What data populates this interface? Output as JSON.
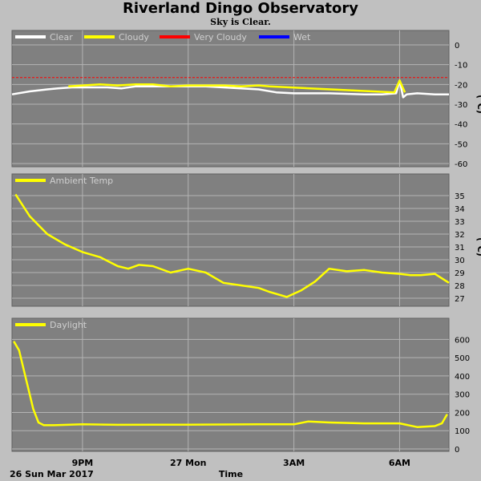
{
  "header": {
    "title": "Riverland Dingo Observatory",
    "subtitle": "Sky is Clear."
  },
  "footer": {
    "date": "26 Sun Mar 2017",
    "xlabel": "Time"
  },
  "colors": {
    "panel": "#808080",
    "grid": "#b4b4b4",
    "clear": "#ffffff",
    "cloudy": "#ffff00",
    "very_cloudy": "#ff0000",
    "wet": "#0000ff"
  },
  "chart_data": [
    {
      "type": "line",
      "panel": "sky",
      "unit": "(°C)",
      "ylim": [
        -60,
        0
      ],
      "yticks": [
        0,
        -10,
        -20,
        -30,
        -40,
        -50,
        -60
      ],
      "xticks": [
        "9PM",
        "27 Mon",
        "3AM",
        "6AM"
      ],
      "xlim_hours": [
        19,
        31.4
      ],
      "threshold": -16.5,
      "legend": [
        "Clear",
        "Cloudy",
        "Very Cloudy",
        "Wet"
      ],
      "series": [
        {
          "name": "Clear",
          "x": [
            19,
            19.5,
            20,
            20.3,
            20.7,
            21.7,
            22.1,
            22.5,
            24.5,
            25,
            25.5,
            26,
            26.5,
            27,
            28,
            29,
            29.5,
            29.9,
            30,
            30.1,
            30.2,
            30.5,
            31,
            31.4
          ],
          "values": [
            -25,
            -23.5,
            -22.5,
            -22,
            -21.5,
            -21.5,
            -22,
            -21,
            -21,
            -21.5,
            -22,
            -22.5,
            -24,
            -24.5,
            -24.5,
            -25,
            -25,
            -24.5,
            -18,
            -26.5,
            -25,
            -24.5,
            -25,
            -25
          ]
        },
        {
          "name": "Cloudy",
          "x": [
            20.6,
            21,
            21.5,
            22,
            22.5,
            23,
            23.5,
            24,
            24.5,
            25,
            25.5,
            26,
            26.3,
            29.85,
            30,
            30.15
          ],
          "values": [
            -21,
            -20.5,
            -20,
            -20.5,
            -20,
            -20,
            -21,
            -20.5,
            -20.5,
            -20.5,
            -21,
            -20.5,
            -21,
            -24,
            -18,
            -24
          ]
        }
      ]
    },
    {
      "type": "line",
      "panel": "ambient",
      "unit": "(°C)",
      "ylim": [
        26.5,
        35.5
      ],
      "yticks": [
        35,
        34,
        33,
        32,
        31,
        30,
        29,
        28,
        27
      ],
      "xticks": [
        "9PM",
        "27 Mon",
        "3AM",
        "6AM"
      ],
      "xlim_hours": [
        19,
        31.4
      ],
      "legend": [
        "Ambient Temp"
      ],
      "series": [
        {
          "name": "Ambient Temp",
          "x": [
            19.1,
            19.5,
            20,
            20.5,
            21,
            21.5,
            22,
            22.3,
            22.6,
            23,
            23.5,
            24,
            24.5,
            25,
            25.5,
            26,
            26.3,
            26.8,
            27.2,
            27.6,
            28,
            28.5,
            29,
            29.5,
            30,
            30.3,
            30.6,
            31,
            31.4
          ],
          "values": [
            35.1,
            33.4,
            32,
            31.2,
            30.6,
            30.2,
            29.5,
            29.3,
            29.6,
            29.5,
            29,
            29.3,
            29,
            28.2,
            28,
            27.8,
            27.5,
            27.1,
            27.6,
            28.3,
            29.3,
            29.1,
            29.2,
            29,
            28.9,
            28.8,
            28.8,
            28.9,
            28.2
          ]
        }
      ]
    },
    {
      "type": "line",
      "panel": "daylight",
      "ylim": [
        0,
        650
      ],
      "yticks": [
        600,
        500,
        400,
        300,
        200,
        100,
        0
      ],
      "xticks": [
        "9PM",
        "27 Mon",
        "3AM",
        "6AM"
      ],
      "xlim_hours": [
        19,
        31.4
      ],
      "legend": [
        "Daylight"
      ],
      "series": [
        {
          "name": "Daylight",
          "x": [
            19.05,
            19.2,
            19.4,
            19.6,
            19.75,
            19.9,
            20.2,
            21,
            22,
            23,
            24,
            25,
            26,
            27,
            27.4,
            28,
            29,
            29.5,
            30,
            30.5,
            31,
            31.2,
            31.35
          ],
          "values": [
            590,
            540,
            380,
            220,
            145,
            130,
            130,
            135,
            132,
            133,
            133,
            134,
            135,
            135,
            150,
            145,
            140,
            140,
            140,
            120,
            125,
            140,
            190
          ]
        }
      ]
    }
  ]
}
